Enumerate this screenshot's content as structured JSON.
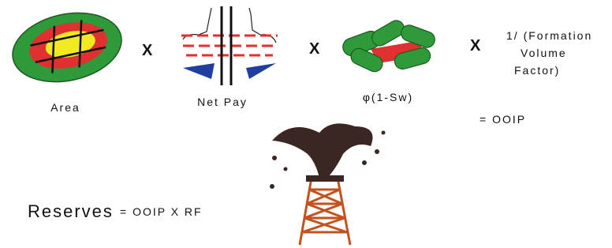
{
  "row1": {
    "terms": [
      {
        "label": "Area"
      },
      {
        "label": "Net Pay"
      },
      {
        "label": "φ(1-Sw)"
      },
      {
        "lines": [
          "1/ (Formation",
          "Volume",
          "Factor)"
        ]
      }
    ],
    "operators": [
      "X",
      "X",
      "X"
    ],
    "result": "= OOIP"
  },
  "reserves": {
    "label": "Reserves",
    "formula": "= OOIP X RF"
  }
}
